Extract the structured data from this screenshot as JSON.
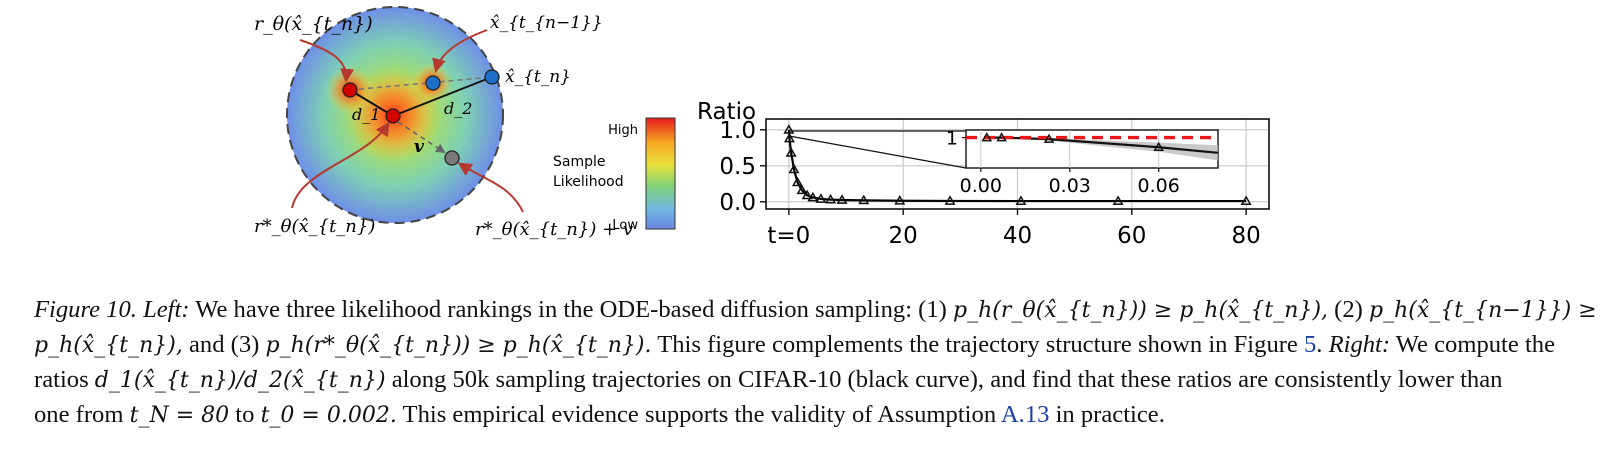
{
  "left_panel": {
    "label_r_theta": "r_θ(x̂_{t_n})",
    "label_x_prev": "x̂_{t_{n−1}}",
    "label_x_tn": "x̂_{t_n}",
    "label_d1": "d_1",
    "label_d2": "d_2",
    "label_v": "v",
    "label_r_star": "r*_θ(x̂_{t_n})",
    "label_r_star_v": "r*_θ(x̂_{t_n}) + v",
    "colorbar_title_1": "Sample",
    "colorbar_title_2": "Likelihood",
    "colorbar_high": "High",
    "colorbar_low": "Low",
    "colors": {
      "red_point": "#d40000",
      "blue_point": "#1f6fc9",
      "gray_point": "#7a7a7a",
      "arrow": "#b5392f"
    }
  },
  "chart_data": {
    "type": "line",
    "ylabel": "Ratio",
    "xtick_labels": [
      "t=0",
      "20",
      "40",
      "60",
      "80"
    ],
    "xticks": [
      0,
      20,
      40,
      60,
      80
    ],
    "ytick_labels": [
      "0.0",
      "0.5",
      "1.0"
    ],
    "yticks": [
      0.0,
      0.5,
      1.0
    ],
    "xlim": [
      -4,
      84
    ],
    "ylim": [
      -0.1,
      1.15
    ],
    "grid": true,
    "series": [
      {
        "color": "#000000",
        "x": [
          0.002,
          0.1,
          0.4,
          0.9,
          1.5,
          2.3,
          3.2,
          4.2,
          5.6,
          7.3,
          9.3,
          13.1,
          19.4,
          28.2,
          40.6,
          57.6,
          80
        ],
        "y": [
          1.0,
          0.88,
          0.68,
          0.45,
          0.27,
          0.16,
          0.09,
          0.06,
          0.04,
          0.03,
          0.025,
          0.02,
          0.015,
          0.012,
          0.01,
          0.01,
          0.01
        ]
      }
    ],
    "inset": {
      "xtick_labels": [
        "0.00",
        "0.03",
        "0.06"
      ],
      "xticks": [
        0.0,
        0.03,
        0.06
      ],
      "ytick_labels": [
        "1"
      ],
      "yticks": [
        1.0
      ],
      "xlim": [
        -0.005,
        0.08
      ],
      "ylim": [
        0.94,
        1.015
      ],
      "reference_line": {
        "y": 1.0,
        "color": "#e8191b",
        "style": "dashed"
      },
      "series_x": [
        0.002,
        0.007,
        0.023,
        0.06,
        0.08
      ],
      "series_y": [
        1.0,
        1.0,
        0.997,
        0.981,
        0.97
      ],
      "band_upper": [
        1.0,
        1.0,
        0.999,
        0.99,
        0.985
      ],
      "band_lower": [
        1.0,
        0.999,
        0.994,
        0.972,
        0.955
      ],
      "marker_x": [
        0.002,
        0.007,
        0.023,
        0.06
      ]
    }
  },
  "caption": {
    "fig_label": "Figure 10.",
    "left_label": "Left:",
    "line1_text": "We have three likelihood rankings in the ODE-based diffusion sampling: (1)",
    "line1_math1": "p_h(r_θ(x̂_{t_n})) ≥ p_h(x̂_{t_n}),",
    "line1_mid": "(2)",
    "line1_math2": "p_h(x̂_{t_{n−1}}) ≥",
    "line2_math1": "p_h(x̂_{t_n}),",
    "line2_and": "and (3)",
    "line2_math2": "p_h(r*_θ(x̂_{t_n})) ≥ p_h(x̂_{t_n}).",
    "line2_text": "This figure complements the trajectory structure shown in Figure",
    "line2_ref": "5",
    "line2_right_label": "Right:",
    "line2_tail": "We compute the",
    "line3_head": "ratios",
    "line3_math": "d_1(x̂_{t_n})/d_2(x̂_{t_n})",
    "line3_text": "along 50k sampling trajectories on CIFAR-10 (black curve), and find that these ratios are consistently lower than",
    "line4_head": "one from",
    "line4_math1": "t_N = 80",
    "line4_to": "to",
    "line4_math2": "t_0 = 0.002.",
    "line4_text": "This empirical evidence supports the validity of Assumption",
    "line4_ref": "A.13",
    "line4_tail": "in practice."
  }
}
